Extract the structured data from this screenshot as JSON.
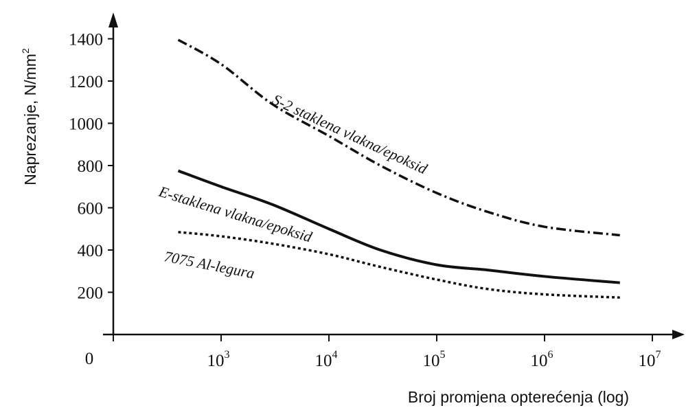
{
  "chart_data": {
    "type": "line",
    "x_scale": "log",
    "y_scale": "linear",
    "xlabel": "Broj promjena opterećenja (log)",
    "ylabel": "Naprezanje, N/mm",
    "ylabel_superscript": "2",
    "origin_label": "0",
    "xlim": [
      100,
      10000000
    ],
    "ylim": [
      0,
      1500
    ],
    "x_ticks": [
      {
        "base": "10",
        "exp": "3",
        "value": 1000
      },
      {
        "base": "10",
        "exp": "4",
        "value": 10000
      },
      {
        "base": "10",
        "exp": "5",
        "value": 100000
      },
      {
        "base": "10",
        "exp": "6",
        "value": 1000000
      },
      {
        "base": "10",
        "exp": "7",
        "value": 10000000
      }
    ],
    "y_ticks": [
      "200",
      "400",
      "600",
      "800",
      "1000",
      "1200",
      "1400"
    ],
    "grid": false,
    "legend": "none (curves labeled inline)",
    "series": [
      {
        "name": "S-2 staklena vlakna/epoksid",
        "style": "dash-dot",
        "x": [
          400,
          1000,
          3000,
          10000,
          30000,
          100000,
          300000,
          1000000,
          5000000
        ],
        "y": [
          1395,
          1280,
          1090,
          940,
          800,
          670,
          580,
          510,
          470
        ]
      },
      {
        "name": "E-staklena vlakna/epoksid",
        "style": "solid",
        "x": [
          400,
          1000,
          3000,
          10000,
          30000,
          100000,
          300000,
          1000000,
          5000000
        ],
        "y": [
          775,
          700,
          615,
          500,
          400,
          330,
          305,
          275,
          245
        ]
      },
      {
        "name": "7075 Al-legura",
        "style": "dotted",
        "x": [
          400,
          1000,
          3000,
          10000,
          30000,
          100000,
          300000,
          1000000,
          5000000
        ],
        "y": [
          485,
          465,
          430,
          380,
          320,
          260,
          215,
          190,
          175
        ]
      }
    ]
  }
}
